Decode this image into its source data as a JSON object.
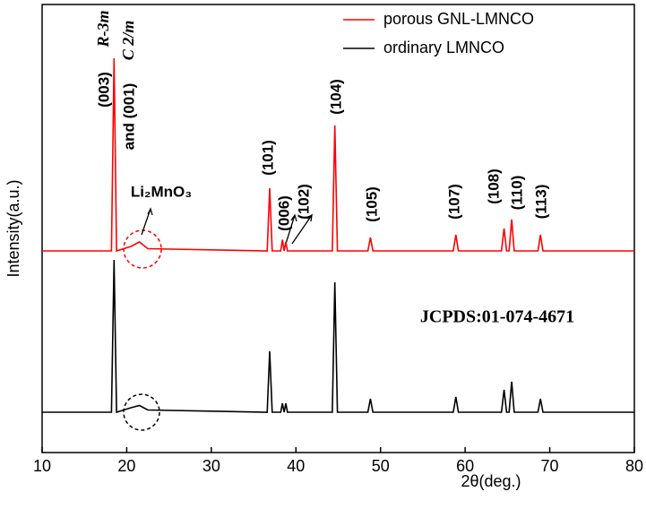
{
  "chart_data": {
    "type": "line",
    "xlabel": "2θ(deg.)",
    "ylabel": "Intensity(a.u.)",
    "x": [
      10,
      18.2,
      18.5,
      18.8,
      20.5,
      21.5,
      22.5,
      36.6,
      36.9,
      37.2,
      38.2,
      38.4,
      38.6,
      38.8,
      39.0,
      44.3,
      44.6,
      44.9,
      48.5,
      48.8,
      49.1,
      58.6,
      58.9,
      59.2,
      64.3,
      64.6,
      64.9,
      65.2,
      65.5,
      65.8,
      68.6,
      68.9,
      69.2,
      80
    ],
    "series": [
      {
        "name": "porous GNL-LMNCO",
        "color": "#ff0000",
        "values": [
          45,
          45,
          88,
          45,
          46,
          47,
          45.5,
          45,
          59,
          45,
          45,
          47.5,
          45,
          47,
          45,
          45,
          73,
          45,
          45,
          48,
          45,
          45,
          48.6,
          45,
          45,
          50,
          45,
          45,
          52,
          45,
          45,
          48.6,
          45,
          45
        ]
      },
      {
        "name": "ordinary LMNCO",
        "color": "#000000",
        "values": [
          9,
          9,
          43,
          9,
          10,
          10.5,
          9.5,
          9,
          22.6,
          9,
          9,
          11,
          9,
          11,
          9,
          9,
          38,
          9,
          9,
          12,
          9,
          9,
          12.4,
          9,
          9,
          14,
          9,
          9,
          15.8,
          9,
          9,
          12,
          9,
          9
        ]
      }
    ],
    "xlim": [
      10,
      80
    ],
    "xticks": [
      10,
      20,
      30,
      40,
      50,
      60,
      70,
      80
    ],
    "ylim": [
      0,
      100
    ],
    "annotations": [
      "(003)",
      "R-3m",
      "and (001)",
      "C 2/m",
      "(104)",
      "(101)",
      "(006)",
      "(102)",
      "(105)",
      "(107)",
      "(108)",
      "(110)",
      "(113)",
      "Li₂MnO₃",
      "JCPDS:01-074-4671"
    ]
  }
}
